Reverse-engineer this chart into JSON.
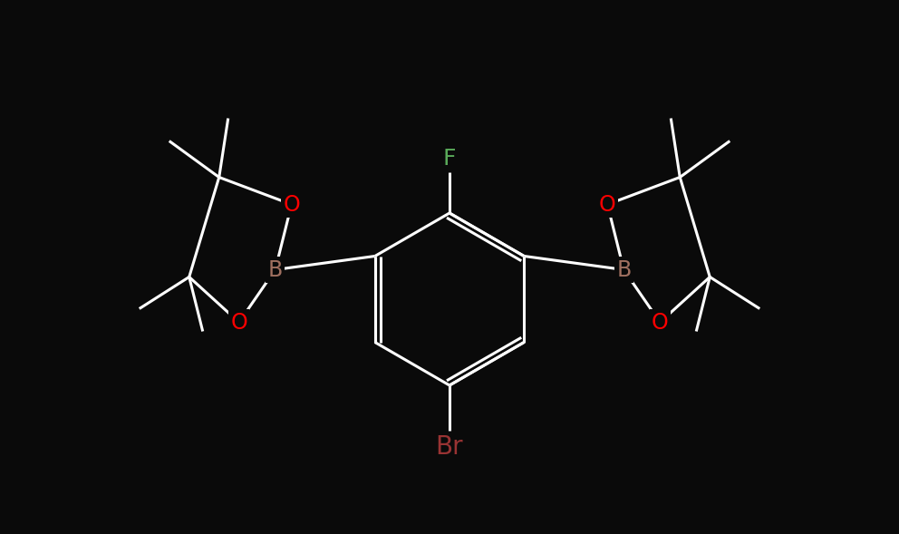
{
  "background_color": "#0a0a0a",
  "bond_color": "#ffffff",
  "bond_width": 2.2,
  "atom_colors": {
    "B": "#a07060",
    "O": "#ff0000",
    "F": "#5aaa5a",
    "Br": "#993333"
  },
  "font_sizes": {
    "B": 17,
    "O": 17,
    "F": 18,
    "Br": 20
  }
}
